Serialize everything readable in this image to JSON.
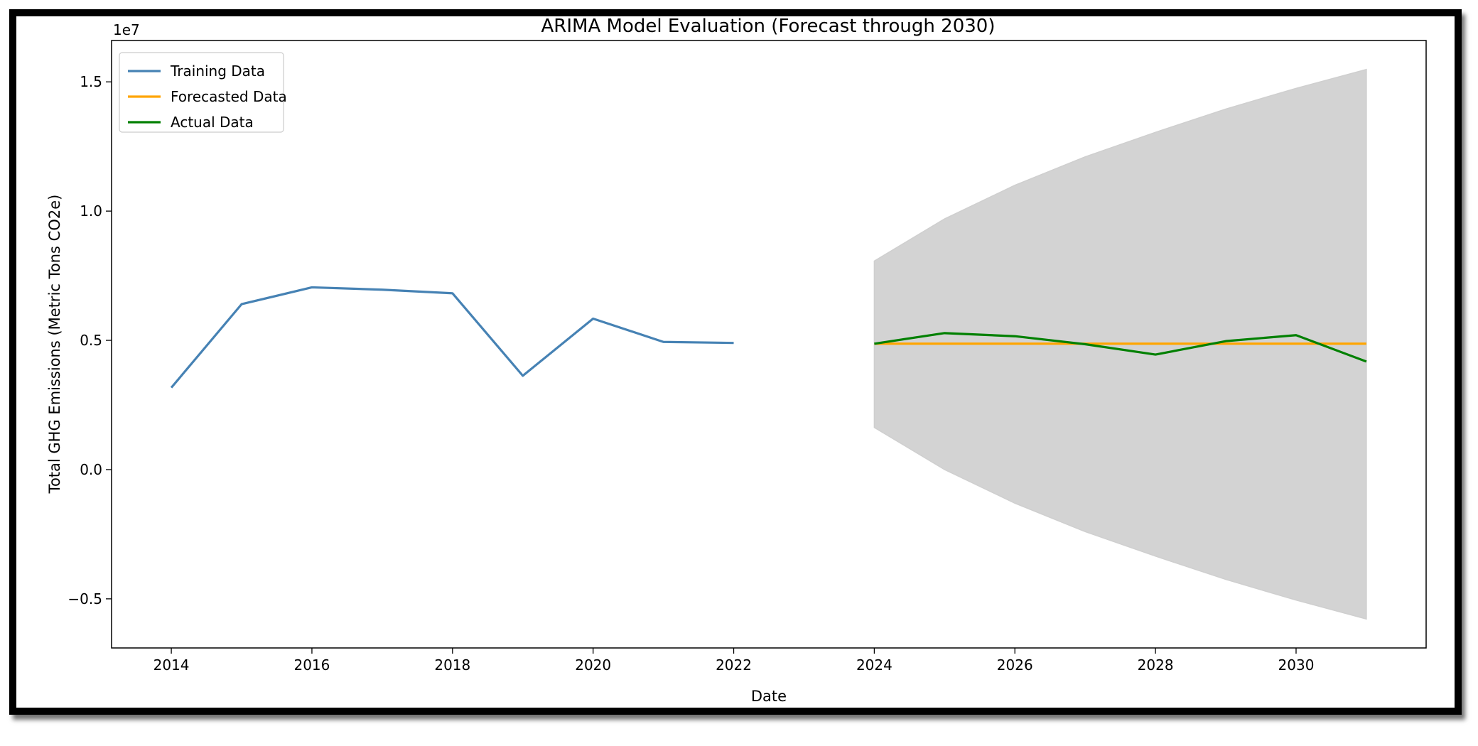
{
  "chart_data": {
    "type": "line",
    "title": "ARIMA Model Evaluation (Forecast through 2030)",
    "xlabel": "Date",
    "ylabel": "Total GHG Emissions (Metric Tons CO2e)",
    "y_offset_label": "1e7",
    "xlim": [
      2013.15,
      2031.85
    ],
    "ylim": [
      -0.69,
      1.66
    ],
    "y_unit_multiplier": 10000000,
    "x_ticks": [
      2014,
      2016,
      2018,
      2020,
      2022,
      2024,
      2026,
      2028,
      2030
    ],
    "y_ticks": [
      {
        "value": -0.5,
        "label": "−0.5"
      },
      {
        "value": 0.0,
        "label": "0.0"
      },
      {
        "value": 0.5,
        "label": "0.5"
      },
      {
        "value": 1.0,
        "label": "1.0"
      },
      {
        "value": 1.5,
        "label": "1.5"
      }
    ],
    "legend_position": "upper-left",
    "grid": false,
    "series": [
      {
        "name": "Training Data",
        "color": "#4682b4",
        "points": [
          [
            2014,
            0.317
          ],
          [
            2015,
            0.64
          ],
          [
            2016,
            0.705
          ],
          [
            2017,
            0.696
          ],
          [
            2018,
            0.682
          ],
          [
            2019,
            0.363
          ],
          [
            2020,
            0.584
          ],
          [
            2021,
            0.494
          ],
          [
            2022,
            0.49
          ]
        ]
      },
      {
        "name": "Forecasted Data",
        "color": "#ffa500",
        "points": [
          [
            2024,
            0.487
          ],
          [
            2025,
            0.487
          ],
          [
            2026,
            0.487
          ],
          [
            2027,
            0.487
          ],
          [
            2028,
            0.487
          ],
          [
            2029,
            0.487
          ],
          [
            2030,
            0.487
          ],
          [
            2031,
            0.487
          ]
        ]
      },
      {
        "name": "Actual Data",
        "color": "#008000",
        "points": [
          [
            2024,
            0.487
          ],
          [
            2025,
            0.528
          ],
          [
            2026,
            0.516
          ],
          [
            2027,
            0.485
          ],
          [
            2028,
            0.445
          ],
          [
            2029,
            0.497
          ],
          [
            2030,
            0.52
          ],
          [
            2031,
            0.418
          ]
        ]
      }
    ],
    "confidence_band": {
      "color": "#d3d3d3",
      "x": [
        2024,
        2025,
        2026,
        2027,
        2028,
        2029,
        2030,
        2031
      ],
      "upper": [
        0.807,
        0.97,
        1.1,
        1.21,
        1.305,
        1.395,
        1.475,
        1.548
      ],
      "lower": [
        0.163,
        0.0,
        -0.13,
        -0.24,
        -0.335,
        -0.425,
        -0.505,
        -0.578
      ]
    }
  }
}
